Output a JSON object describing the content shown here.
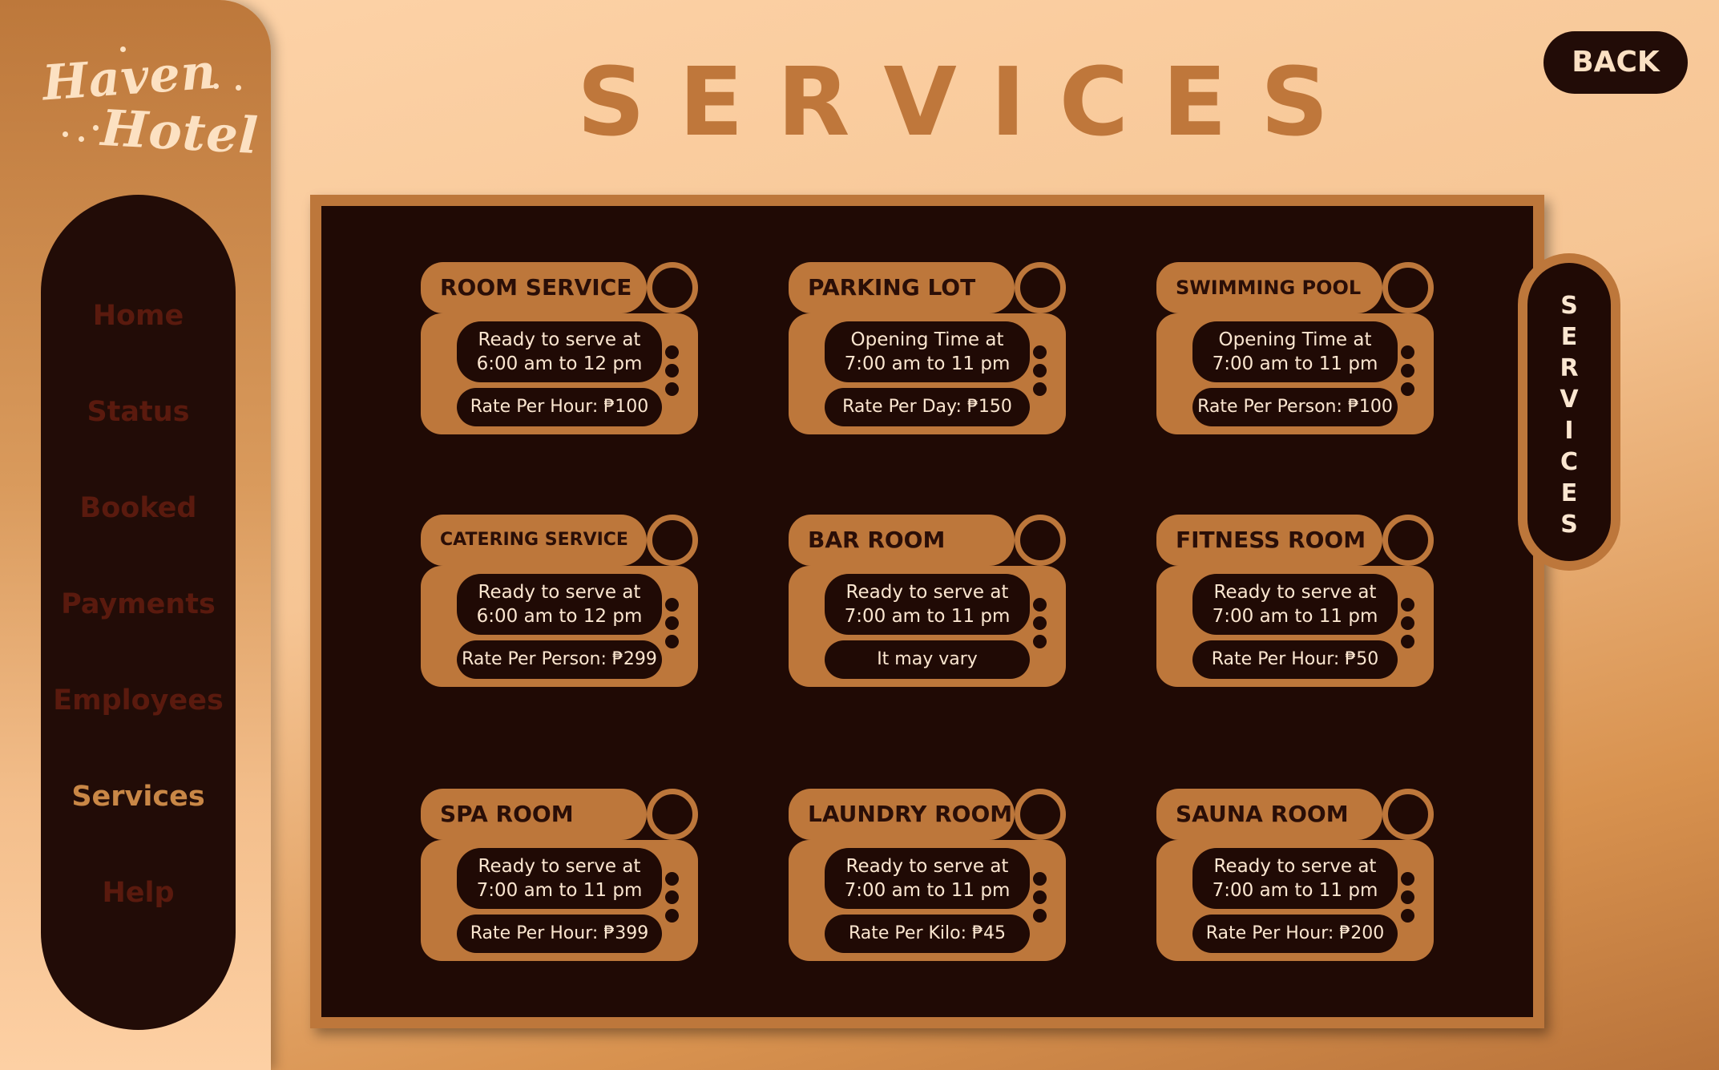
{
  "sidebar": {
    "logo": {
      "line1": "Haven",
      "line2": "Hotel"
    },
    "nav": [
      {
        "label": "Home",
        "active": false
      },
      {
        "label": "Status",
        "active": false
      },
      {
        "label": "Booked",
        "active": false
      },
      {
        "label": "Payments",
        "active": false
      },
      {
        "label": "Employees",
        "active": false
      },
      {
        "label": "Services",
        "active": true
      },
      {
        "label": "Help",
        "active": false
      }
    ]
  },
  "header": {
    "title": "SERVICES",
    "back_label": "BACK"
  },
  "side_tab": {
    "letters": [
      "S",
      "E",
      "R",
      "V",
      "I",
      "C",
      "E",
      "S"
    ]
  },
  "services": [
    {
      "name": "ROOM SERVICE",
      "line1": "Ready to serve at",
      "line2": "6:00 am to 12 pm",
      "rate": "Rate Per Hour: ₱100"
    },
    {
      "name": "PARKING LOT",
      "line1": "Opening Time at",
      "line2": "7:00 am to 11 pm",
      "rate": "Rate Per Day: ₱150"
    },
    {
      "name": "SWIMMING POOL",
      "line1": "Opening Time at",
      "line2": "7:00 am to 11 pm",
      "rate": "Rate Per Person: ₱100"
    },
    {
      "name": "CATERING SERVICE",
      "line1": "Ready to serve at",
      "line2": "6:00 am to 12 pm",
      "rate": "Rate Per Person: ₱299"
    },
    {
      "name": "BAR ROOM",
      "line1": "Ready to serve at",
      "line2": "7:00 am to 11 pm",
      "rate": "It may vary"
    },
    {
      "name": "FITNESS ROOM",
      "line1": "Ready to serve at",
      "line2": "7:00 am to 11 pm",
      "rate": "Rate Per Hour: ₱50"
    },
    {
      "name": "SPA ROOM",
      "line1": "Ready to serve at",
      "line2": "7:00 am to 11 pm",
      "rate": "Rate Per Hour: ₱399"
    },
    {
      "name": "LAUNDRY ROOM",
      "line1": "Ready to serve at",
      "line2": "7:00 am to 11 pm",
      "rate": "Rate Per Kilo: ₱45"
    },
    {
      "name": "SAUNA ROOM",
      "line1": "Ready to serve at",
      "line2": "7:00 am to 11 pm",
      "rate": "Rate Per Hour: ₱200"
    }
  ],
  "colors": {
    "accent": "#bd773b",
    "dark": "#200a05",
    "nav_inactive": "#5a1a0e",
    "light_text": "#fbe6d0"
  }
}
